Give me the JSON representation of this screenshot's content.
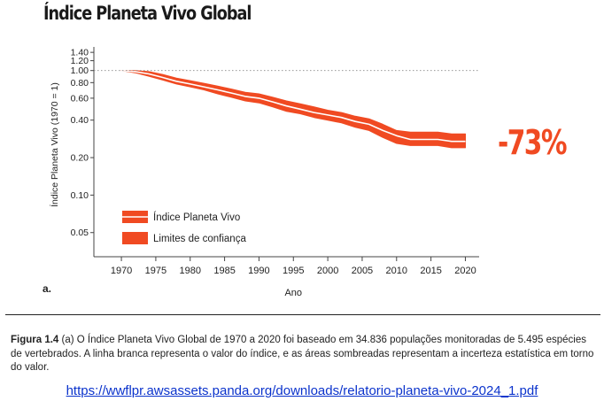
{
  "chart_data": {
    "type": "area",
    "title": "Índice Planeta Vivo Global",
    "xlabel": "Ano",
    "ylabel": "Índice Planeta Vivo (1970 = 1)",
    "y_scale": "log",
    "xlim": [
      1966,
      2022
    ],
    "ylim": [
      0.032,
      1.45
    ],
    "x_ticks": [
      "1970",
      "1975",
      "1980",
      "1985",
      "1990",
      "1995",
      "2000",
      "2005",
      "2010",
      "2015",
      "2020"
    ],
    "y_ticks": [
      "0.05",
      "0.10",
      "0.20",
      "0.40",
      "0.60",
      "0.80",
      "1.00",
      "1.20",
      "1.40"
    ],
    "reference_line": 1.0,
    "panel_label": "a.",
    "change_label": "-73%",
    "legend": [
      {
        "label": "Índice Planeta Vivo"
      },
      {
        "label": "Limites de confiança"
      }
    ],
    "legend_position": "bottom-left",
    "colors": {
      "band": "#f04a22",
      "index_line": "#ffffff",
      "change_label": "#f04a22",
      "axis": "#444444"
    },
    "series": [
      {
        "name": "Índice Planeta Vivo",
        "x": [
          1970,
          1972,
          1974,
          1976,
          1978,
          1980,
          1982,
          1984,
          1986,
          1988,
          1990,
          1992,
          1994,
          1996,
          1998,
          2000,
          2002,
          2004,
          2006,
          2008,
          2010,
          2012,
          2014,
          2016,
          2018,
          2020
        ],
        "values": [
          1.0,
          0.98,
          0.94,
          0.88,
          0.82,
          0.78,
          0.74,
          0.7,
          0.66,
          0.62,
          0.6,
          0.56,
          0.52,
          0.49,
          0.46,
          0.44,
          0.42,
          0.39,
          0.37,
          0.33,
          0.3,
          0.28,
          0.28,
          0.28,
          0.27,
          0.27
        ]
      },
      {
        "name": "Limites de confiança",
        "x": [
          1970,
          1972,
          1974,
          1976,
          1978,
          1980,
          1982,
          1984,
          1986,
          1988,
          1990,
          1992,
          1994,
          1996,
          1998,
          2000,
          2002,
          2004,
          2006,
          2008,
          2010,
          2012,
          2014,
          2016,
          2018,
          2020
        ],
        "lower": [
          1.0,
          0.96,
          0.9,
          0.84,
          0.78,
          0.74,
          0.7,
          0.65,
          0.61,
          0.57,
          0.55,
          0.51,
          0.47,
          0.45,
          0.42,
          0.4,
          0.38,
          0.35,
          0.33,
          0.29,
          0.26,
          0.25,
          0.25,
          0.25,
          0.24,
          0.24
        ],
        "upper": [
          1.0,
          1.0,
          0.98,
          0.93,
          0.87,
          0.83,
          0.79,
          0.75,
          0.71,
          0.67,
          0.65,
          0.61,
          0.57,
          0.54,
          0.51,
          0.48,
          0.46,
          0.43,
          0.41,
          0.37,
          0.33,
          0.32,
          0.32,
          0.32,
          0.31,
          0.31
        ]
      }
    ]
  },
  "caption": {
    "label": "Figura 1.4",
    "text": "(a) O Índice Planeta Vivo Global de 1970 a 2020 foi baseado em 34.836 populações monitoradas de 5.495 espécies de vertebrados. A linha branca representa o valor do índice, e as áreas sombreadas representam a incerteza estatística em torno do valor."
  },
  "source_link": "https://wwflpr.awsassets.panda.org/downloads/relatorio-planeta-vivo-2024_1.pdf"
}
